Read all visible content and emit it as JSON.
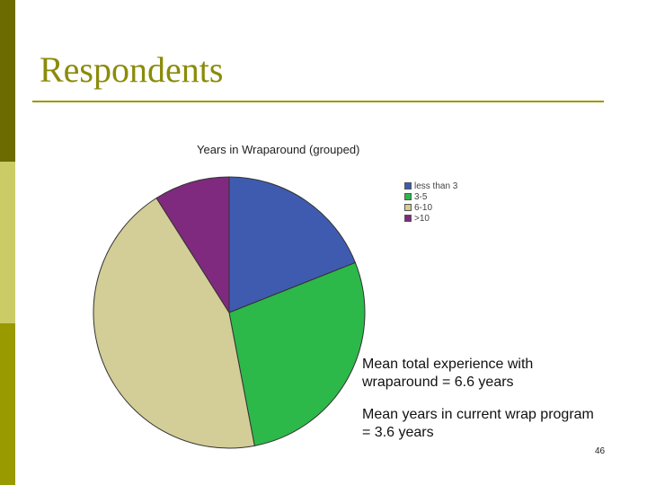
{
  "slide": {
    "title": "Respondents",
    "notes": [
      "Mean total experience with wraparound = 6.6 years",
      "Mean years in current wrap program = 3.6 years"
    ],
    "page_number": "46"
  },
  "chart_data": {
    "type": "pie",
    "title": "Years in Wraparound (grouped)",
    "legend_position": "top-right",
    "categories": [
      "less than 3",
      "3-5",
      "6-10",
      ">10"
    ],
    "values": [
      19,
      28,
      44,
      9
    ],
    "colors": [
      "#3f5bb0",
      "#2db84a",
      "#d3cd97",
      "#7f2a7f"
    ]
  }
}
